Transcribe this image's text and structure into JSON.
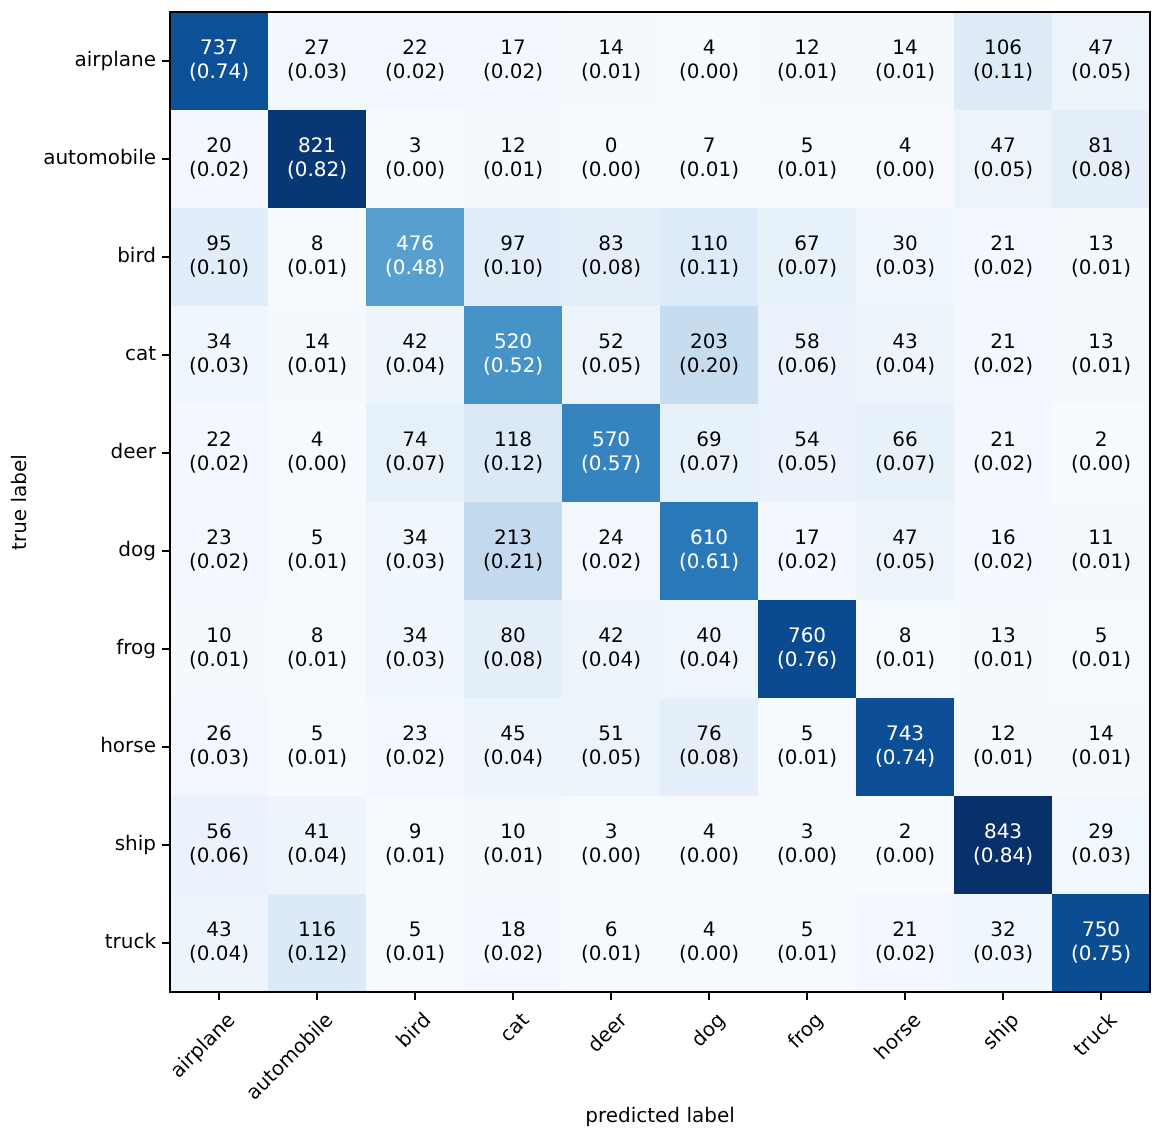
{
  "chart_data": {
    "type": "heatmap",
    "xlabel": "predicted label",
    "ylabel": "true label",
    "data_labels": true,
    "categories": [
      "airplane",
      "automobile",
      "bird",
      "cat",
      "deer",
      "dog",
      "frog",
      "horse",
      "ship",
      "truck"
    ],
    "y_categories": [
      "airplane",
      "automobile",
      "bird",
      "cat",
      "deer",
      "dog",
      "frog",
      "horse",
      "ship",
      "truck"
    ],
    "cells": [
      [
        737,
        27,
        22,
        17,
        14,
        4,
        12,
        14,
        106,
        47
      ],
      [
        20,
        821,
        3,
        12,
        0,
        7,
        5,
        4,
        47,
        81
      ],
      [
        95,
        8,
        476,
        97,
        83,
        110,
        67,
        30,
        21,
        13
      ],
      [
        34,
        14,
        42,
        520,
        52,
        203,
        58,
        43,
        21,
        13
      ],
      [
        22,
        4,
        74,
        118,
        570,
        69,
        54,
        66,
        21,
        2
      ],
      [
        23,
        5,
        34,
        213,
        24,
        610,
        17,
        47,
        16,
        11
      ],
      [
        10,
        8,
        34,
        80,
        42,
        40,
        760,
        8,
        13,
        5
      ],
      [
        26,
        5,
        23,
        45,
        51,
        76,
        5,
        743,
        12,
        14
      ],
      [
        56,
        41,
        9,
        10,
        3,
        4,
        3,
        2,
        843,
        29
      ],
      [
        43,
        116,
        5,
        18,
        6,
        4,
        5,
        21,
        32,
        750
      ]
    ],
    "annotations": [
      "(0.74)",
      "(0.03)",
      "(0.02)",
      "(0.02)",
      "(0.01)",
      "(0.00)",
      "(0.01)",
      "(0.01)",
      "(0.11)",
      "(0.05)",
      "(0.02)",
      "(0.82)",
      "(0.00)",
      "(0.01)",
      "(0.00)",
      "(0.01)",
      "(0.01)",
      "(0.00)",
      "(0.05)",
      "(0.08)",
      "(0.10)",
      "(0.01)",
      "(0.48)",
      "(0.10)",
      "(0.08)",
      "(0.11)",
      "(0.07)",
      "(0.03)",
      "(0.02)",
      "(0.01)",
      "(0.03)",
      "(0.01)",
      "(0.04)",
      "(0.52)",
      "(0.05)",
      "(0.20)",
      "(0.06)",
      "(0.04)",
      "(0.02)",
      "(0.01)",
      "(0.02)",
      "(0.00)",
      "(0.07)",
      "(0.12)",
      "(0.57)",
      "(0.07)",
      "(0.05)",
      "(0.07)",
      "(0.02)",
      "(0.00)",
      "(0.02)",
      "(0.01)",
      "(0.03)",
      "(0.21)",
      "(0.02)",
      "(0.61)",
      "(0.02)",
      "(0.05)",
      "(0.02)",
      "(0.01)",
      "(0.01)",
      "(0.01)",
      "(0.03)",
      "(0.08)",
      "(0.04)",
      "(0.04)",
      "(0.76)",
      "(0.01)",
      "(0.01)",
      "(0.01)",
      "(0.03)",
      "(0.01)",
      "(0.02)",
      "(0.04)",
      "(0.05)",
      "(0.08)",
      "(0.01)",
      "(0.74)",
      "(0.01)",
      "(0.01)",
      "(0.06)",
      "(0.04)",
      "(0.01)",
      "(0.01)",
      "(0.00)",
      "(0.00)",
      "(0.00)",
      "(0.00)",
      "(0.84)",
      "(0.03)",
      "(0.04)",
      "(0.12)",
      "(0.01)",
      "(0.02)",
      "(0.01)",
      "(0.00)",
      "(0.01)",
      "(0.02)",
      "(0.03)",
      "(0.75)"
    ]
  }
}
